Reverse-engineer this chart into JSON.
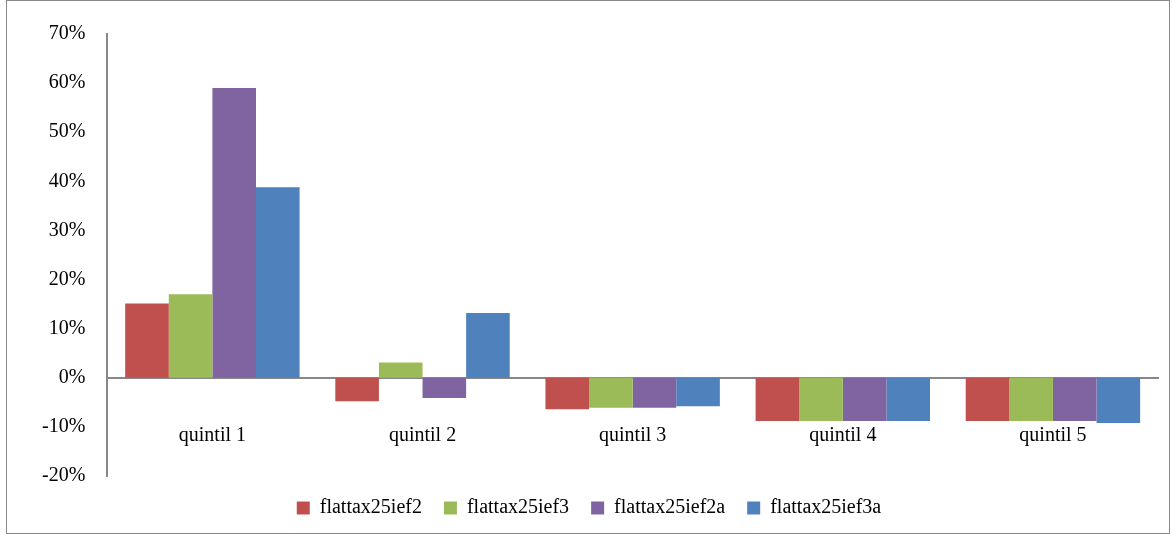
{
  "chart_data": {
    "type": "bar",
    "categories": [
      "quintil 1",
      "quintil 2",
      "quintil 3",
      "quintil 4",
      "quintil 5"
    ],
    "series": [
      {
        "name": "flattax25ief2",
        "color": "#c0504d",
        "values": [
          0.151,
          -0.048,
          -0.064,
          -0.088,
          -0.088
        ]
      },
      {
        "name": "flattax25ief3",
        "color": "#9bbb59",
        "values": [
          0.17,
          0.031,
          -0.061,
          -0.088,
          -0.088
        ]
      },
      {
        "name": "flattax25ief2a",
        "color": "#8064a2",
        "values": [
          0.59,
          -0.041,
          -0.061,
          -0.088,
          -0.088
        ]
      },
      {
        "name": "flattax25ief3a",
        "color": "#4f81bd",
        "values": [
          0.388,
          0.132,
          -0.058,
          -0.088,
          -0.092
        ]
      }
    ],
    "ylim": [
      -0.2,
      0.7
    ],
    "yticks": [
      {
        "value": -0.2,
        "label": "-20%"
      },
      {
        "value": -0.1,
        "label": "-10%"
      },
      {
        "value": 0,
        "label": "0%"
      },
      {
        "value": 0.1,
        "label": "10%"
      },
      {
        "value": 0.2,
        "label": "20%"
      },
      {
        "value": 0.3,
        "label": "30%"
      },
      {
        "value": 0.4,
        "label": "40%"
      },
      {
        "value": 0.5,
        "label": "50%"
      },
      {
        "value": 0.6,
        "label": "60%"
      },
      {
        "value": 0.7,
        "label": "70%"
      }
    ],
    "grid": false,
    "legend": "bottom"
  }
}
